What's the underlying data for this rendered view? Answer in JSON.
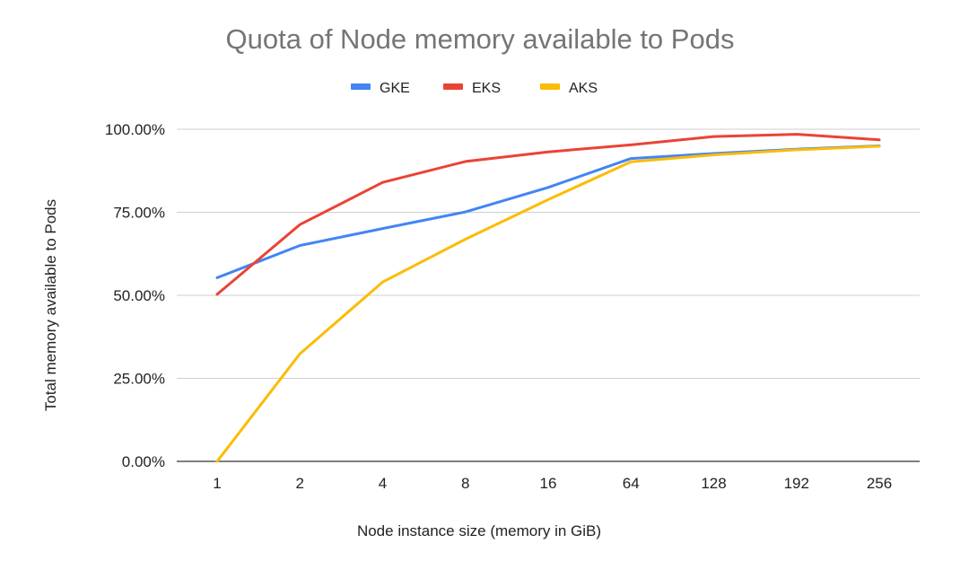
{
  "chart_data": {
    "type": "line",
    "title": "Quota of Node memory available to Pods",
    "xlabel": "Node instance size (memory in GiB)",
    "ylabel": "Total memory available to Pods",
    "categories": [
      "1",
      "2",
      "4",
      "8",
      "16",
      "64",
      "128",
      "192",
      "256"
    ],
    "ylim": [
      0,
      100
    ],
    "yticks": [
      0,
      25,
      50,
      75,
      100
    ],
    "ytick_labels": [
      "0.00%",
      "25.00%",
      "50.00%",
      "75.00%",
      "100.00%"
    ],
    "grid": true,
    "legend_position": "top",
    "series": [
      {
        "name": "GKE",
        "color": "#4285f4",
        "values": [
          55.3,
          65.0,
          70.1,
          75.1,
          82.5,
          91.2,
          92.7,
          94.0,
          95.0
        ]
      },
      {
        "name": "EKS",
        "color": "#ea4335",
        "values": [
          50.3,
          71.3,
          84.0,
          90.3,
          93.2,
          95.3,
          97.8,
          98.5,
          96.8
        ]
      },
      {
        "name": "AKS",
        "color": "#fbbc04",
        "values": [
          0.0,
          32.4,
          54.0,
          66.9,
          78.8,
          90.2,
          92.3,
          93.8,
          94.9
        ]
      }
    ]
  }
}
